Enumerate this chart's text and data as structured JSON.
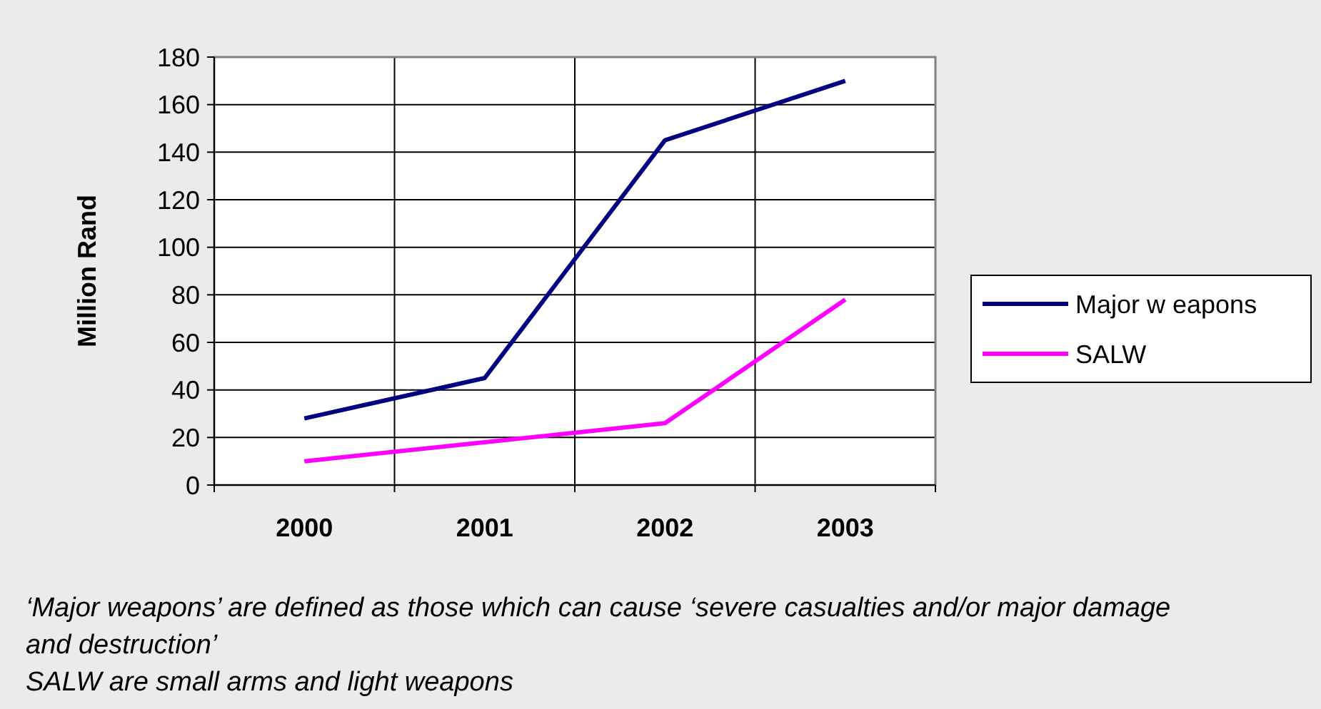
{
  "chart_data": {
    "type": "line",
    "ylabel": "Million Rand",
    "categories": [
      "2000",
      "2001",
      "2002",
      "2003"
    ],
    "series": [
      {
        "name": "Major w eapons",
        "color": "#000080",
        "values": [
          28,
          45,
          145,
          170
        ]
      },
      {
        "name": "SALW",
        "color": "#ff00ff",
        "values": [
          10,
          18,
          26,
          78
        ]
      }
    ],
    "ylim": [
      0,
      180
    ],
    "yticks": [
      0,
      20,
      40,
      60,
      80,
      100,
      120,
      140,
      160,
      180
    ],
    "grid": true,
    "legend": "right",
    "marker": "none",
    "annotations": [
      "‘Major weapons’ are defined as those which can cause ‘severe casualties and/or major damage and destruction’",
      "SALW are small arms and light weapons"
    ]
  }
}
